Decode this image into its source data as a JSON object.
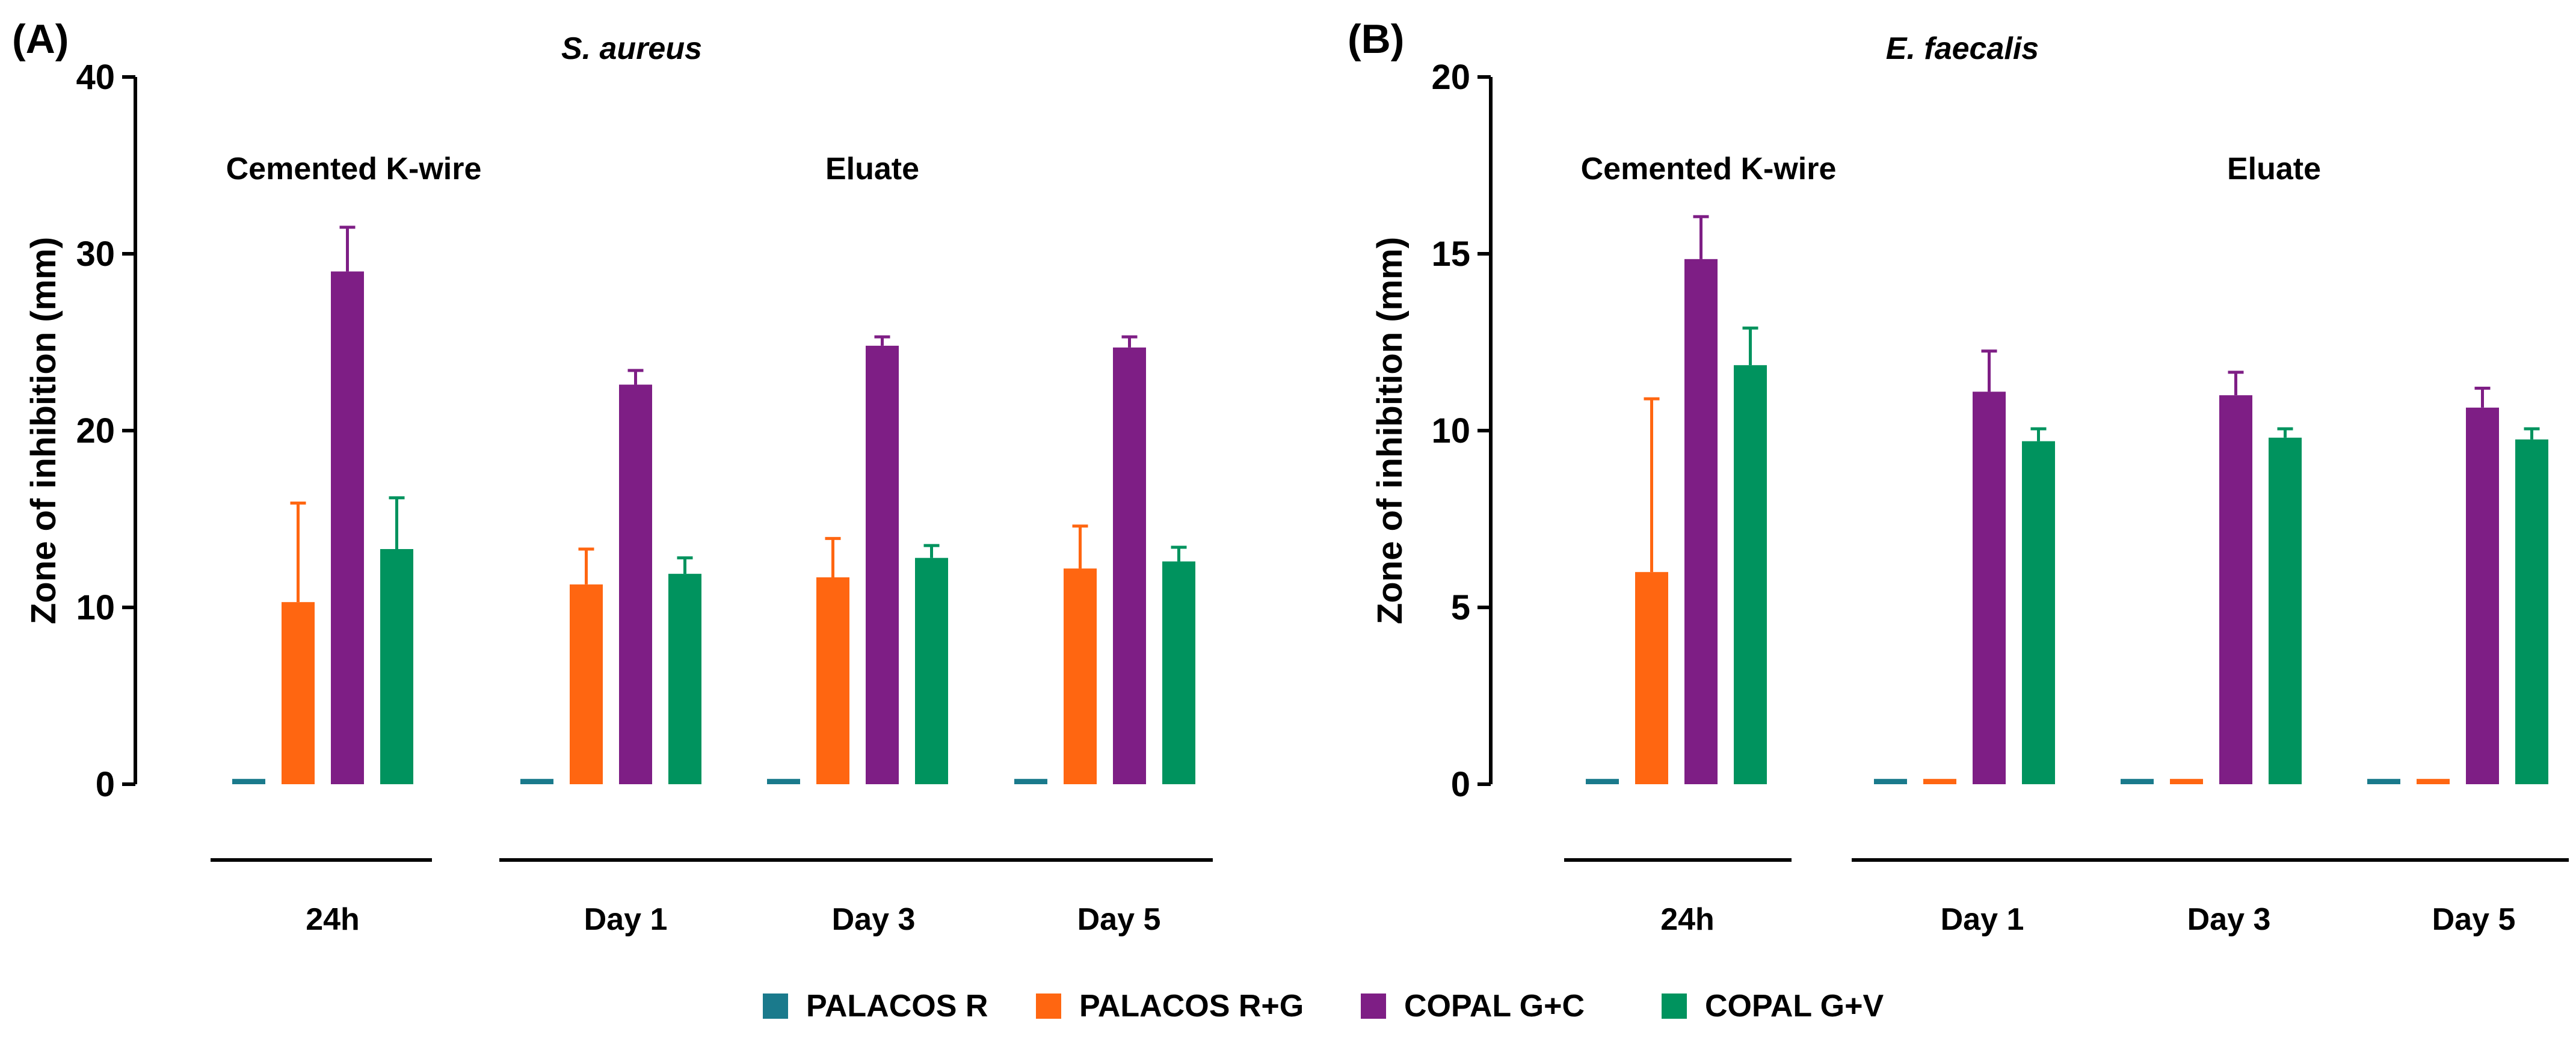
{
  "colors": {
    "PALACOS R": "#1A7A8C",
    "PALACOS R+G": "#FF6611",
    "COPAL G+C": "#7E1E85",
    "COPAL G+V": "#00935E"
  },
  "legend": [
    "PALACOS R",
    "PALACOS R+G",
    "COPAL G+C",
    "COPAL G+V"
  ],
  "chart_data": [
    {
      "type": "bar",
      "panel_label": "(A)",
      "title": "S. aureus",
      "ylabel": "Zone of inhibition (mm)",
      "ylim": [
        0,
        40
      ],
      "yticks": [
        "0",
        "10",
        "20",
        "30",
        "40"
      ],
      "ytick_values": [
        0,
        10,
        20,
        30,
        40
      ],
      "section_labels": [
        "Cemented K-wire",
        "Eluate"
      ],
      "categories": [
        "24h",
        "Day 1",
        "Day 3",
        "Day 5"
      ],
      "series": [
        {
          "name": "PALACOS R",
          "values": [
            0.3,
            0.3,
            0.3,
            0.3
          ],
          "errors": [
            0,
            0,
            0,
            0
          ]
        },
        {
          "name": "PALACOS R+G",
          "values": [
            10.3,
            11.3,
            11.7,
            12.2
          ],
          "errors": [
            5.6,
            2.0,
            2.2,
            2.4
          ]
        },
        {
          "name": "COPAL G+C",
          "values": [
            29.0,
            22.6,
            24.8,
            24.7
          ],
          "errors": [
            2.5,
            0.8,
            0.5,
            0.6
          ]
        },
        {
          "name": "COPAL G+V",
          "values": [
            13.3,
            11.9,
            12.8,
            12.6
          ],
          "errors": [
            2.9,
            0.9,
            0.7,
            0.8
          ]
        }
      ]
    },
    {
      "type": "bar",
      "panel_label": "(B)",
      "title": "E. faecalis",
      "ylabel": "Zone of inhibition (mm)",
      "ylim": [
        0,
        20
      ],
      "yticks": [
        "0",
        "5",
        "10",
        "15",
        "20"
      ],
      "ytick_values": [
        0,
        5,
        10,
        15,
        20
      ],
      "section_labels": [
        "Cemented K-wire",
        "Eluate"
      ],
      "categories": [
        "24h",
        "Day 1",
        "Day 3",
        "Day 5"
      ],
      "series": [
        {
          "name": "PALACOS R",
          "values": [
            0.15,
            0.15,
            0.15,
            0.15
          ],
          "errors": [
            0,
            0,
            0,
            0
          ]
        },
        {
          "name": "PALACOS R+G",
          "values": [
            6.0,
            0.15,
            0.15,
            0.15
          ],
          "errors": [
            4.9,
            0,
            0,
            0
          ]
        },
        {
          "name": "COPAL G+C",
          "values": [
            14.85,
            11.1,
            11.0,
            10.65
          ],
          "errors": [
            1.2,
            1.15,
            0.65,
            0.55
          ]
        },
        {
          "name": "COPAL G+V",
          "values": [
            11.85,
            9.7,
            9.8,
            9.75
          ],
          "errors": [
            1.05,
            0.35,
            0.25,
            0.3
          ]
        }
      ]
    }
  ]
}
